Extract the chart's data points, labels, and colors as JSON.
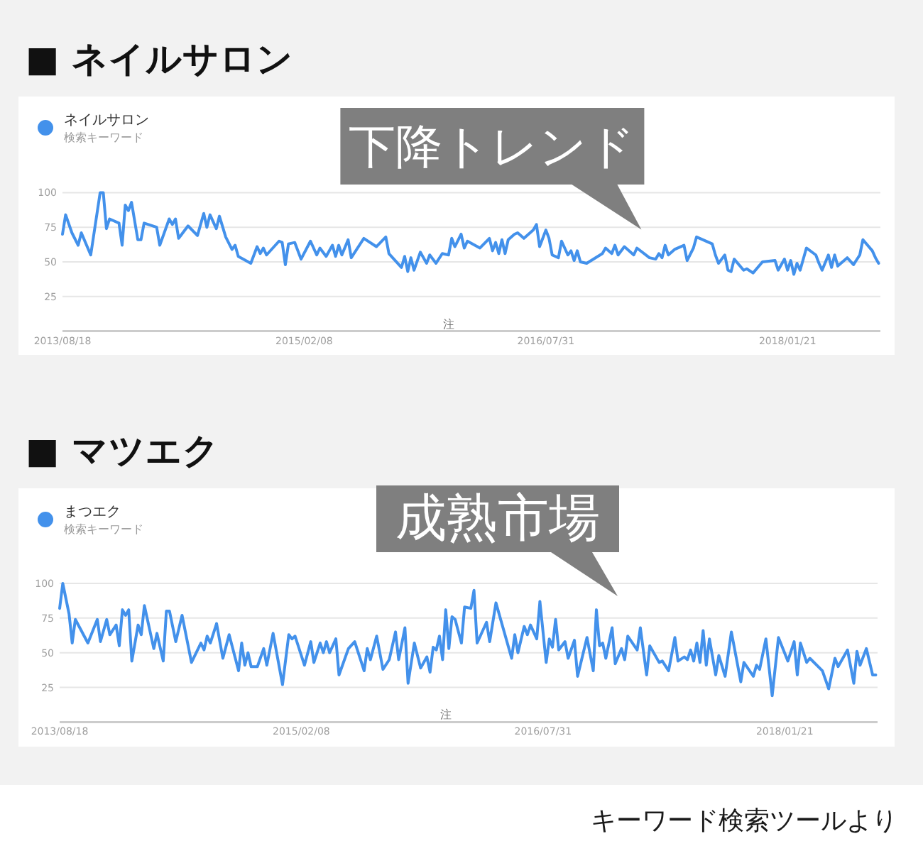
{
  "chart_data": [
    {
      "type": "line",
      "title": "■ ネイルサロン",
      "legend_title": "検索キーワード",
      "legend": "top left",
      "grid": "y",
      "xlim": [
        "2013-08-18",
        "2018-08-16"
      ],
      "xticks": [
        {
          "value": "2013-08-18",
          "label": "2013/08/18"
        },
        {
          "value": "2015-02-08",
          "label": "2015/02/08"
        },
        {
          "value": "2016-07-31",
          "label": "2016/07/31"
        },
        {
          "value": "2018-01-21",
          "label": "2018/01/21"
        }
      ],
      "ylim": [
        0,
        100
      ],
      "yticks": [
        25,
        50,
        75,
        100
      ],
      "annotations": [
        "下降トレンド",
        "注"
      ],
      "series": [
        {
          "name": "ネイルサロン",
          "color": "#4391eb",
          "x": [
            "2013-08-18",
            "2013-08-25",
            "2013-09-08",
            "2013-09-22",
            "2013-09-29",
            "2013-10-20",
            "2013-11-10",
            "2013-11-17",
            "2013-11-24",
            "2013-12-01",
            "2013-12-22",
            "2013-12-29",
            "2014-01-05",
            "2014-01-12",
            "2014-01-19",
            "2014-02-02",
            "2014-02-09",
            "2014-02-16",
            "2014-03-16",
            "2014-03-23",
            "2014-04-13",
            "2014-04-20",
            "2014-04-27",
            "2014-05-04",
            "2014-05-25",
            "2014-06-15",
            "2014-06-29",
            "2014-07-06",
            "2014-07-13",
            "2014-07-27",
            "2014-08-03",
            "2014-08-17",
            "2014-08-31",
            "2014-09-07",
            "2014-09-14",
            "2014-10-12",
            "2014-10-26",
            "2014-11-02",
            "2014-11-09",
            "2014-11-16",
            "2014-12-14",
            "2014-12-21",
            "2014-12-28",
            "2015-01-04",
            "2015-01-18",
            "2015-02-01",
            "2015-02-22",
            "2015-03-08",
            "2015-03-15",
            "2015-03-29",
            "2015-04-12",
            "2015-04-19",
            "2015-04-26",
            "2015-05-03",
            "2015-05-17",
            "2015-05-24",
            "2015-06-21",
            "2015-07-19",
            "2015-08-09",
            "2015-08-16",
            "2015-09-13",
            "2015-09-20",
            "2015-09-27",
            "2015-10-04",
            "2015-10-11",
            "2015-10-25",
            "2015-11-08",
            "2015-11-15",
            "2015-11-29",
            "2015-12-13",
            "2015-12-27",
            "2016-01-03",
            "2016-01-10",
            "2016-01-24",
            "2016-01-31",
            "2016-02-07",
            "2016-03-06",
            "2016-03-27",
            "2016-04-03",
            "2016-04-10",
            "2016-04-17",
            "2016-04-24",
            "2016-05-01",
            "2016-05-08",
            "2016-05-22",
            "2016-05-29",
            "2016-06-12",
            "2016-07-03",
            "2016-07-10",
            "2016-07-17",
            "2016-07-31",
            "2016-08-07",
            "2016-08-14",
            "2016-08-28",
            "2016-09-04",
            "2016-09-18",
            "2016-09-25",
            "2016-10-02",
            "2016-10-09",
            "2016-10-16",
            "2016-10-30",
            "2016-12-04",
            "2016-12-11",
            "2016-12-25",
            "2017-01-01",
            "2017-01-08",
            "2017-01-22",
            "2017-02-12",
            "2017-02-19",
            "2017-03-19",
            "2017-04-02",
            "2017-04-09",
            "2017-04-16",
            "2017-04-23",
            "2017-04-30",
            "2017-05-14",
            "2017-06-04",
            "2017-06-11",
            "2017-06-25",
            "2017-07-02",
            "2017-08-06",
            "2017-08-13",
            "2017-08-20",
            "2017-09-03",
            "2017-09-10",
            "2017-09-17",
            "2017-09-24",
            "2017-10-15",
            "2017-10-22",
            "2017-11-05",
            "2017-11-26",
            "2017-12-24",
            "2017-12-31",
            "2018-01-14",
            "2018-01-21",
            "2018-01-28",
            "2018-02-04",
            "2018-02-11",
            "2018-02-18",
            "2018-03-04",
            "2018-03-25",
            "2018-04-01",
            "2018-04-08",
            "2018-04-22",
            "2018-04-29",
            "2018-05-06",
            "2018-05-13",
            "2018-06-03",
            "2018-06-17",
            "2018-07-01",
            "2018-07-08",
            "2018-07-29",
            "2018-08-05",
            "2018-08-12"
          ],
          "values": [
            70,
            84,
            71,
            62,
            71,
            55,
            100,
            100,
            74,
            81,
            78,
            62,
            91,
            87,
            93,
            66,
            66,
            78,
            75,
            62,
            81,
            77,
            81,
            67,
            76,
            69,
            85,
            75,
            84,
            74,
            83,
            68,
            59,
            62,
            54,
            49,
            61,
            56,
            60,
            55,
            65,
            64,
            48,
            63,
            64,
            52,
            65,
            55,
            60,
            54,
            62,
            54,
            62,
            55,
            66,
            53,
            67,
            61,
            68,
            56,
            46,
            54,
            43,
            53,
            44,
            57,
            49,
            55,
            49,
            56,
            55,
            67,
            61,
            70,
            60,
            65,
            60,
            67,
            58,
            64,
            56,
            66,
            56,
            66,
            70,
            71,
            67,
            73,
            77,
            61,
            73,
            67,
            55,
            53,
            65,
            55,
            58,
            51,
            58,
            50,
            49,
            56,
            60,
            56,
            62,
            55,
            61,
            55,
            60,
            53,
            52,
            56,
            53,
            62,
            55,
            59,
            62,
            51,
            60,
            68,
            63,
            55,
            49,
            55,
            44,
            43,
            52,
            44,
            45,
            42,
            50,
            51,
            44,
            52,
            44,
            51,
            41,
            49,
            44,
            60,
            55,
            49,
            44,
            55,
            46,
            55,
            47,
            53,
            48,
            55,
            66,
            58,
            53,
            49
          ]
        }
      ]
    },
    {
      "type": "line",
      "title": "■ マツエク",
      "legend_title": "検索キーワード",
      "legend": "top left",
      "grid": "y",
      "xlim": [
        "2013-08-18",
        "2018-08-16"
      ],
      "xticks": [
        {
          "value": "2013-08-18",
          "label": "2013/08/18"
        },
        {
          "value": "2015-02-08",
          "label": "2015/02/08"
        },
        {
          "value": "2016-07-31",
          "label": "2016/07/31"
        },
        {
          "value": "2018-01-21",
          "label": "2018/01/21"
        }
      ],
      "ylim": [
        0,
        100
      ],
      "yticks": [
        25,
        50,
        75,
        100
      ],
      "annotations": [
        "成熟市場",
        "注",
        "キーワード検索ツールより"
      ],
      "series": [
        {
          "name": "まつエク",
          "color": "#4391eb",
          "x": [
            "2013-08-18",
            "2013-08-25",
            "2013-09-08",
            "2013-09-15",
            "2013-09-22",
            "2013-10-20",
            "2013-11-10",
            "2013-11-17",
            "2013-12-01",
            "2013-12-08",
            "2013-12-22",
            "2013-12-29",
            "2014-01-05",
            "2014-01-12",
            "2014-01-19",
            "2014-01-26",
            "2014-02-09",
            "2014-02-16",
            "2014-02-23",
            "2014-03-16",
            "2014-03-23",
            "2014-04-06",
            "2014-04-13",
            "2014-04-20",
            "2014-05-04",
            "2014-05-18",
            "2014-06-08",
            "2014-06-29",
            "2014-07-06",
            "2014-07-13",
            "2014-07-20",
            "2014-08-03",
            "2014-08-17",
            "2014-08-31",
            "2014-09-21",
            "2014-09-28",
            "2014-10-05",
            "2014-10-12",
            "2014-10-19",
            "2014-11-02",
            "2014-11-16",
            "2014-11-23",
            "2014-12-07",
            "2014-12-28",
            "2015-01-11",
            "2015-01-18",
            "2015-01-25",
            "2015-02-15",
            "2015-03-01",
            "2015-03-08",
            "2015-03-22",
            "2015-03-29",
            "2015-04-05",
            "2015-04-12",
            "2015-04-26",
            "2015-05-03",
            "2015-05-24",
            "2015-06-07",
            "2015-06-28",
            "2015-07-05",
            "2015-07-12",
            "2015-07-26",
            "2015-08-09",
            "2015-08-23",
            "2015-09-06",
            "2015-09-13",
            "2015-09-27",
            "2015-10-04",
            "2015-10-18",
            "2015-11-01",
            "2015-11-15",
            "2015-11-22",
            "2015-11-29",
            "2015-12-06",
            "2015-12-13",
            "2015-12-20",
            "2015-12-27",
            "2016-01-03",
            "2016-01-10",
            "2016-01-17",
            "2016-01-31",
            "2016-02-07",
            "2016-02-21",
            "2016-02-28",
            "2016-03-06",
            "2016-03-27",
            "2016-04-03",
            "2016-04-17",
            "2016-05-01",
            "2016-05-22",
            "2016-05-29",
            "2016-06-05",
            "2016-06-19",
            "2016-06-26",
            "2016-07-03",
            "2016-07-17",
            "2016-07-24",
            "2016-08-07",
            "2016-08-14",
            "2016-08-21",
            "2016-08-28",
            "2016-09-04",
            "2016-09-18",
            "2016-09-25",
            "2016-10-09",
            "2016-10-16",
            "2016-11-06",
            "2016-11-20",
            "2016-11-27",
            "2016-12-04",
            "2016-12-11",
            "2016-12-18",
            "2017-01-01",
            "2017-01-08",
            "2017-01-22",
            "2017-01-29",
            "2017-02-05",
            "2017-02-26",
            "2017-03-05",
            "2017-03-19",
            "2017-03-26",
            "2017-04-16",
            "2017-04-23",
            "2017-05-07",
            "2017-05-21",
            "2017-05-28",
            "2017-06-11",
            "2017-06-18",
            "2017-06-25",
            "2017-07-02",
            "2017-07-09",
            "2017-07-16",
            "2017-07-23",
            "2017-07-30",
            "2017-08-06",
            "2017-08-20",
            "2017-08-27",
            "2017-09-10",
            "2017-09-24",
            "2017-10-15",
            "2017-10-22",
            "2017-11-12",
            "2017-11-19",
            "2017-11-26",
            "2017-12-10",
            "2017-12-24",
            "2018-01-07",
            "2018-01-28",
            "2018-02-11",
            "2018-02-18",
            "2018-02-25",
            "2018-03-11",
            "2018-03-18",
            "2018-04-15",
            "2018-04-29",
            "2018-05-13",
            "2018-05-20",
            "2018-06-10",
            "2018-06-24",
            "2018-07-01",
            "2018-07-08",
            "2018-07-22",
            "2018-08-05",
            "2018-08-12"
          ],
          "values": [
            82,
            100,
            78,
            57,
            74,
            57,
            74,
            58,
            74,
            63,
            70,
            55,
            81,
            77,
            81,
            44,
            70,
            63,
            84,
            53,
            64,
            44,
            80,
            80,
            58,
            77,
            43,
            57,
            52,
            62,
            57,
            71,
            46,
            63,
            37,
            57,
            41,
            50,
            40,
            40,
            53,
            41,
            64,
            27,
            63,
            60,
            62,
            41,
            58,
            43,
            57,
            50,
            58,
            50,
            60,
            34,
            53,
            58,
            37,
            53,
            45,
            62,
            38,
            45,
            65,
            45,
            68,
            28,
            57,
            39,
            47,
            36,
            54,
            52,
            62,
            45,
            81,
            53,
            76,
            74,
            57,
            83,
            82,
            95,
            57,
            72,
            58,
            86,
            70,
            46,
            63,
            50,
            69,
            63,
            70,
            60,
            87,
            43,
            60,
            54,
            74,
            52,
            58,
            46,
            59,
            33,
            61,
            37,
            81,
            55,
            57,
            46,
            68,
            42,
            53,
            45,
            62,
            52,
            68,
            34,
            55,
            43,
            44,
            37,
            61,
            44,
            47,
            45,
            52,
            44,
            57,
            43,
            66,
            41,
            60,
            34,
            48,
            33,
            65,
            29,
            43,
            33,
            41,
            38,
            60,
            19,
            61,
            44,
            58,
            34,
            57,
            43,
            46,
            37,
            24,
            46,
            40,
            52,
            28,
            51,
            41,
            53,
            34,
            34
          ]
        }
      ]
    }
  ]
}
